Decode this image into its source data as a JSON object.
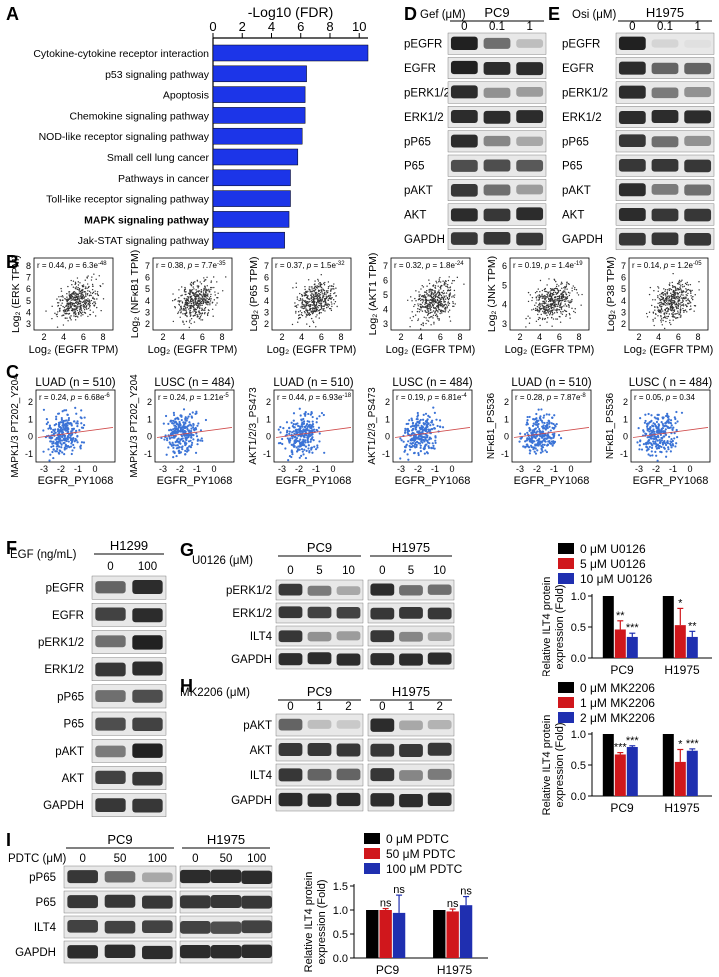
{
  "panels": {
    "A": {
      "letter": "A",
      "xlabel": "-Log10 (FDR)",
      "ticks": [
        0,
        2,
        4,
        6,
        8,
        10
      ],
      "xmax": 10.6,
      "bar_color": "#1c35e8",
      "pathways": [
        {
          "label": "Cytokine-cytokine receptor interaction",
          "value": 10.6
        },
        {
          "label": "p53 signaling pathway",
          "value": 6.4
        },
        {
          "label": "Apoptosis",
          "value": 6.3
        },
        {
          "label": "Chemokine signaling pathway",
          "value": 6.3
        },
        {
          "label": "NOD-like receptor signaling pathway",
          "value": 6.1
        },
        {
          "label": "Small cell lung cancer",
          "value": 5.8
        },
        {
          "label": "Pathways in cancer",
          "value": 5.3
        },
        {
          "label": "Toll-like receptor signaling pathway",
          "value": 5.3
        },
        {
          "label": "MAPK signaling pathway",
          "value": 5.2,
          "bold": true
        },
        {
          "label": "Jak-STAT signaling pathway",
          "value": 4.9
        }
      ]
    },
    "D": {
      "letter": "D",
      "cell": "PC9",
      "treat": "Gef (μM)",
      "doses": [
        "0",
        "0.1",
        "1"
      ],
      "bands": [
        "pEGFR",
        "EGFR",
        "pERK1/2",
        "ERK1/2",
        "pP65",
        "P65",
        "pAKT",
        "AKT",
        "GAPDH"
      ],
      "intensity": [
        [
          0.9,
          0.55,
          0.2
        ],
        [
          0.9,
          0.85,
          0.85
        ],
        [
          0.85,
          0.4,
          0.35
        ],
        [
          0.85,
          0.85,
          0.85
        ],
        [
          0.85,
          0.45,
          0.3
        ],
        [
          0.7,
          0.7,
          0.65
        ],
        [
          0.8,
          0.55,
          0.35
        ],
        [
          0.85,
          0.8,
          0.85
        ],
        [
          0.8,
          0.8,
          0.8
        ]
      ]
    },
    "E": {
      "letter": "E",
      "cell": "H1975",
      "treat": "Osi (μM)",
      "doses": [
        "0",
        "0.1",
        "1"
      ],
      "bands": [
        "pEGFR",
        "EGFR",
        "pERK1/2",
        "ERK1/2",
        "pP65",
        "P65",
        "pAKT",
        "AKT",
        "GAPDH"
      ],
      "intensity": [
        [
          0.9,
          0.1,
          0.05
        ],
        [
          0.85,
          0.6,
          0.6
        ],
        [
          0.85,
          0.5,
          0.4
        ],
        [
          0.85,
          0.85,
          0.85
        ],
        [
          0.8,
          0.55,
          0.4
        ],
        [
          0.8,
          0.8,
          0.8
        ],
        [
          0.85,
          0.5,
          0.55
        ],
        [
          0.85,
          0.8,
          0.8
        ],
        [
          0.8,
          0.8,
          0.8
        ]
      ]
    },
    "B": {
      "letter": "B",
      "xlabel": "Log₂ (EGFR TPM)",
      "x_ticks": [
        "2",
        "4",
        "6",
        "8"
      ],
      "plots": [
        {
          "ylabel": "Log₂ (ERK TPM)",
          "r": "r = 0.44,",
          "p": "p = 6.3e",
          "exp": "-48",
          "yticks": [
            "3",
            "4",
            "5",
            "6",
            "7",
            "8"
          ]
        },
        {
          "ylabel": "Log₂ (NFκB1 TPM)",
          "r": "r = 0.38,",
          "p": "p = 7.7e",
          "exp": "-35",
          "yticks": [
            "2",
            "3",
            "4",
            "5",
            "6",
            "7"
          ]
        },
        {
          "ylabel": "Log₂ (P65 TPM)",
          "r": "r = 0.37,",
          "p": "p = 1.5e",
          "exp": "-32",
          "yticks": [
            "2",
            "3",
            "4",
            "5",
            "6",
            "7"
          ]
        },
        {
          "ylabel": "Log₂ (AKT1 TPM)",
          "r": "r = 0.32,",
          "p": "p = 1.8e",
          "exp": "-24",
          "yticks": [
            "3",
            "4",
            "5",
            "6",
            "7"
          ]
        },
        {
          "ylabel": "Log₂ (JNK TPM)",
          "r": "r = 0.19,",
          "p": "p = 1.4e",
          "exp": "-19",
          "yticks": [
            "3",
            "4",
            "5",
            "6"
          ]
        },
        {
          "ylabel": "Log₂ (P38 TPM)",
          "r": "r = 0.14,",
          "p": "p = 1.2e",
          "exp": "-05",
          "yticks": [
            "2",
            "3",
            "4",
            "5",
            "6",
            "7"
          ]
        }
      ]
    },
    "C": {
      "letter": "C",
      "xlabel": "EGFR_PY1068",
      "x_ticks": [
        "-3",
        "-2",
        "-1",
        "0"
      ],
      "plots": [
        {
          "title": "LUAD (n = 510)",
          "ylabel": "MAPK1/3 PT202_Y204",
          "r": "r = 0.24,",
          "p": "p = 6.68e",
          "exp": "-6",
          "yticks": [
            "-1",
            "0",
            "1",
            "2"
          ]
        },
        {
          "title": "LUSC (n = 484)",
          "ylabel": "MAPK1/3 PT202_Y204",
          "r": "r = 0.24,",
          "p": "p = 1.21e",
          "exp": "-5",
          "yticks": [
            "-1",
            "0",
            "1",
            "2"
          ]
        },
        {
          "title": "LUAD (n = 510)",
          "ylabel": "AKT1/2/3_PS473",
          "r": "r = 0.44,",
          "p": "p = 6.93e",
          "exp": "-18",
          "yticks": [
            "-1",
            "0",
            "1",
            "2"
          ]
        },
        {
          "title": "LUSC (n = 484)",
          "ylabel": "AKT1/2/3_PS473",
          "r": "r = 0.19,",
          "p": "p = 6.81e",
          "exp": "-4",
          "yticks": [
            "-1",
            "0",
            "1",
            "2"
          ]
        },
        {
          "title": "LUAD (n = 510)",
          "ylabel": "NFκB1_PS536",
          "r": "r = 0.28,",
          "p": "p = 7.87e",
          "exp": "-8",
          "yticks": [
            "-1",
            "0",
            "1",
            "2"
          ]
        },
        {
          "title": "LUSC ( n = 484)",
          "ylabel": "NFκB1_PS536",
          "r": "r = 0.05,",
          "p": "p = 0.34",
          "exp": "",
          "yticks": [
            "-1",
            "0",
            "1",
            "2"
          ]
        }
      ]
    },
    "F": {
      "letter": "F",
      "cell": "H1299",
      "treat": "EGF (ng/mL)",
      "doses": [
        "0",
        "100"
      ],
      "bands": [
        "pEGFR",
        "EGFR",
        "pERK1/2",
        "ERK1/2",
        "pP65",
        "P65",
        "pAKT",
        "AKT",
        "GAPDH"
      ],
      "intensity": [
        [
          0.6,
          0.85
        ],
        [
          0.75,
          0.85
        ],
        [
          0.55,
          0.9
        ],
        [
          0.8,
          0.85
        ],
        [
          0.55,
          0.7
        ],
        [
          0.7,
          0.75
        ],
        [
          0.5,
          0.9
        ],
        [
          0.75,
          0.8
        ],
        [
          0.8,
          0.8
        ]
      ]
    },
    "G": {
      "letter": "G",
      "treat": "U0126 (μM)",
      "cells": [
        "PC9",
        "H1975"
      ],
      "doses": [
        "0",
        "5",
        "10",
        "0",
        "5",
        "10"
      ],
      "bands": [
        "pERK1/2",
        "ERK1/2",
        "ILT4",
        "GAPDH"
      ],
      "intensity": [
        [
          0.8,
          0.5,
          0.3,
          0.85,
          0.55,
          0.55
        ],
        [
          0.8,
          0.75,
          0.75,
          0.8,
          0.8,
          0.8
        ],
        [
          0.8,
          0.4,
          0.35,
          0.8,
          0.45,
          0.3
        ],
        [
          0.85,
          0.85,
          0.85,
          0.85,
          0.85,
          0.85
        ]
      ],
      "chart_data": {
        "type": "bar",
        "categories": [
          "PC9",
          "H1975"
        ],
        "ylabel": "Relative ILT4 protein expression (Fold)",
        "ylim": [
          0,
          1
        ],
        "yticks": [
          "0.0",
          "0.5",
          "1.0"
        ],
        "series": [
          {
            "name": "0 μM U0126",
            "color": "#000000",
            "values": [
              1.0,
              1.0
            ],
            "err": [
              0,
              0
            ],
            "sig": [
              "",
              ""
            ]
          },
          {
            "name": "5 μM U0126",
            "color": "#d0171c",
            "values": [
              0.46,
              0.53
            ],
            "err": [
              0.14,
              0.27
            ],
            "sig": [
              "**",
              "*"
            ]
          },
          {
            "name": "10 μM U0126",
            "color": "#1f2fb0",
            "values": [
              0.34,
              0.34
            ],
            "err": [
              0.06,
              0.09
            ],
            "sig": [
              "***",
              "**"
            ]
          }
        ]
      }
    },
    "H": {
      "letter": "H",
      "treat": "MK2206 (μM)",
      "cells": [
        "PC9",
        "H1975"
      ],
      "doses": [
        "0",
        "1",
        "2",
        "0",
        "1",
        "2"
      ],
      "bands": [
        "pAKT",
        "AKT",
        "ILT4",
        "GAPDH"
      ],
      "intensity": [
        [
          0.6,
          0.2,
          0.15,
          0.85,
          0.3,
          0.25
        ],
        [
          0.8,
          0.8,
          0.8,
          0.8,
          0.8,
          0.8
        ],
        [
          0.8,
          0.6,
          0.6,
          0.8,
          0.45,
          0.5
        ],
        [
          0.85,
          0.85,
          0.85,
          0.85,
          0.85,
          0.85
        ]
      ],
      "chart_data": {
        "type": "bar",
        "categories": [
          "PC9",
          "H1975"
        ],
        "ylabel": "Relative ILT4 protein expression (Fold)",
        "ylim": [
          0,
          1
        ],
        "yticks": [
          "0.0",
          "0.5",
          "1.0"
        ],
        "series": [
          {
            "name": "0 μM MK2206",
            "color": "#000000",
            "values": [
              1.0,
              1.0
            ],
            "err": [
              0,
              0
            ],
            "sig": [
              "",
              ""
            ]
          },
          {
            "name": "1 μM MK2206",
            "color": "#d0171c",
            "values": [
              0.67,
              0.55
            ],
            "err": [
              0.03,
              0.2
            ],
            "sig": [
              "***",
              "*"
            ]
          },
          {
            "name": "2 μM MK2206",
            "color": "#1f2fb0",
            "values": [
              0.79,
              0.73
            ],
            "err": [
              0.02,
              0.03
            ],
            "sig": [
              "***",
              "***"
            ]
          }
        ]
      }
    },
    "I": {
      "letter": "I",
      "treat": "PDTC (μM)",
      "cells": [
        "PC9",
        "H1975"
      ],
      "doses": [
        "0",
        "50",
        "100",
        "0",
        "50",
        "100"
      ],
      "bands": [
        "pP65",
        "P65",
        "ILT4",
        "GAPDH"
      ],
      "intensity": [
        [
          0.8,
          0.55,
          0.3,
          0.85,
          0.85,
          0.85
        ],
        [
          0.8,
          0.8,
          0.8,
          0.8,
          0.8,
          0.8
        ],
        [
          0.75,
          0.75,
          0.75,
          0.75,
          0.7,
          0.75
        ],
        [
          0.85,
          0.85,
          0.85,
          0.85,
          0.85,
          0.85
        ]
      ],
      "chart_data": {
        "type": "bar",
        "categories": [
          "PC9",
          "H1975"
        ],
        "ylabel": "Relative ILT4 protein expression (Fold)",
        "ylim": [
          0,
          1.5
        ],
        "yticks": [
          "0.0",
          "0.5",
          "1.0",
          "1.5"
        ],
        "series": [
          {
            "name": "0 μM PDTC",
            "color": "#000000",
            "values": [
              1.0,
              1.0
            ],
            "err": [
              0,
              0
            ],
            "sig": [
              "",
              ""
            ]
          },
          {
            "name": "50 μM PDTC",
            "color": "#d0171c",
            "values": [
              1.0,
              0.97
            ],
            "err": [
              0.03,
              0.05
            ],
            "sig": [
              "ns",
              "ns"
            ]
          },
          {
            "name": "100 μM PDTC",
            "color": "#1f2fb0",
            "values": [
              0.94,
              1.1
            ],
            "err": [
              0.37,
              0.18
            ],
            "sig": [
              "ns",
              "ns"
            ]
          }
        ]
      }
    }
  }
}
